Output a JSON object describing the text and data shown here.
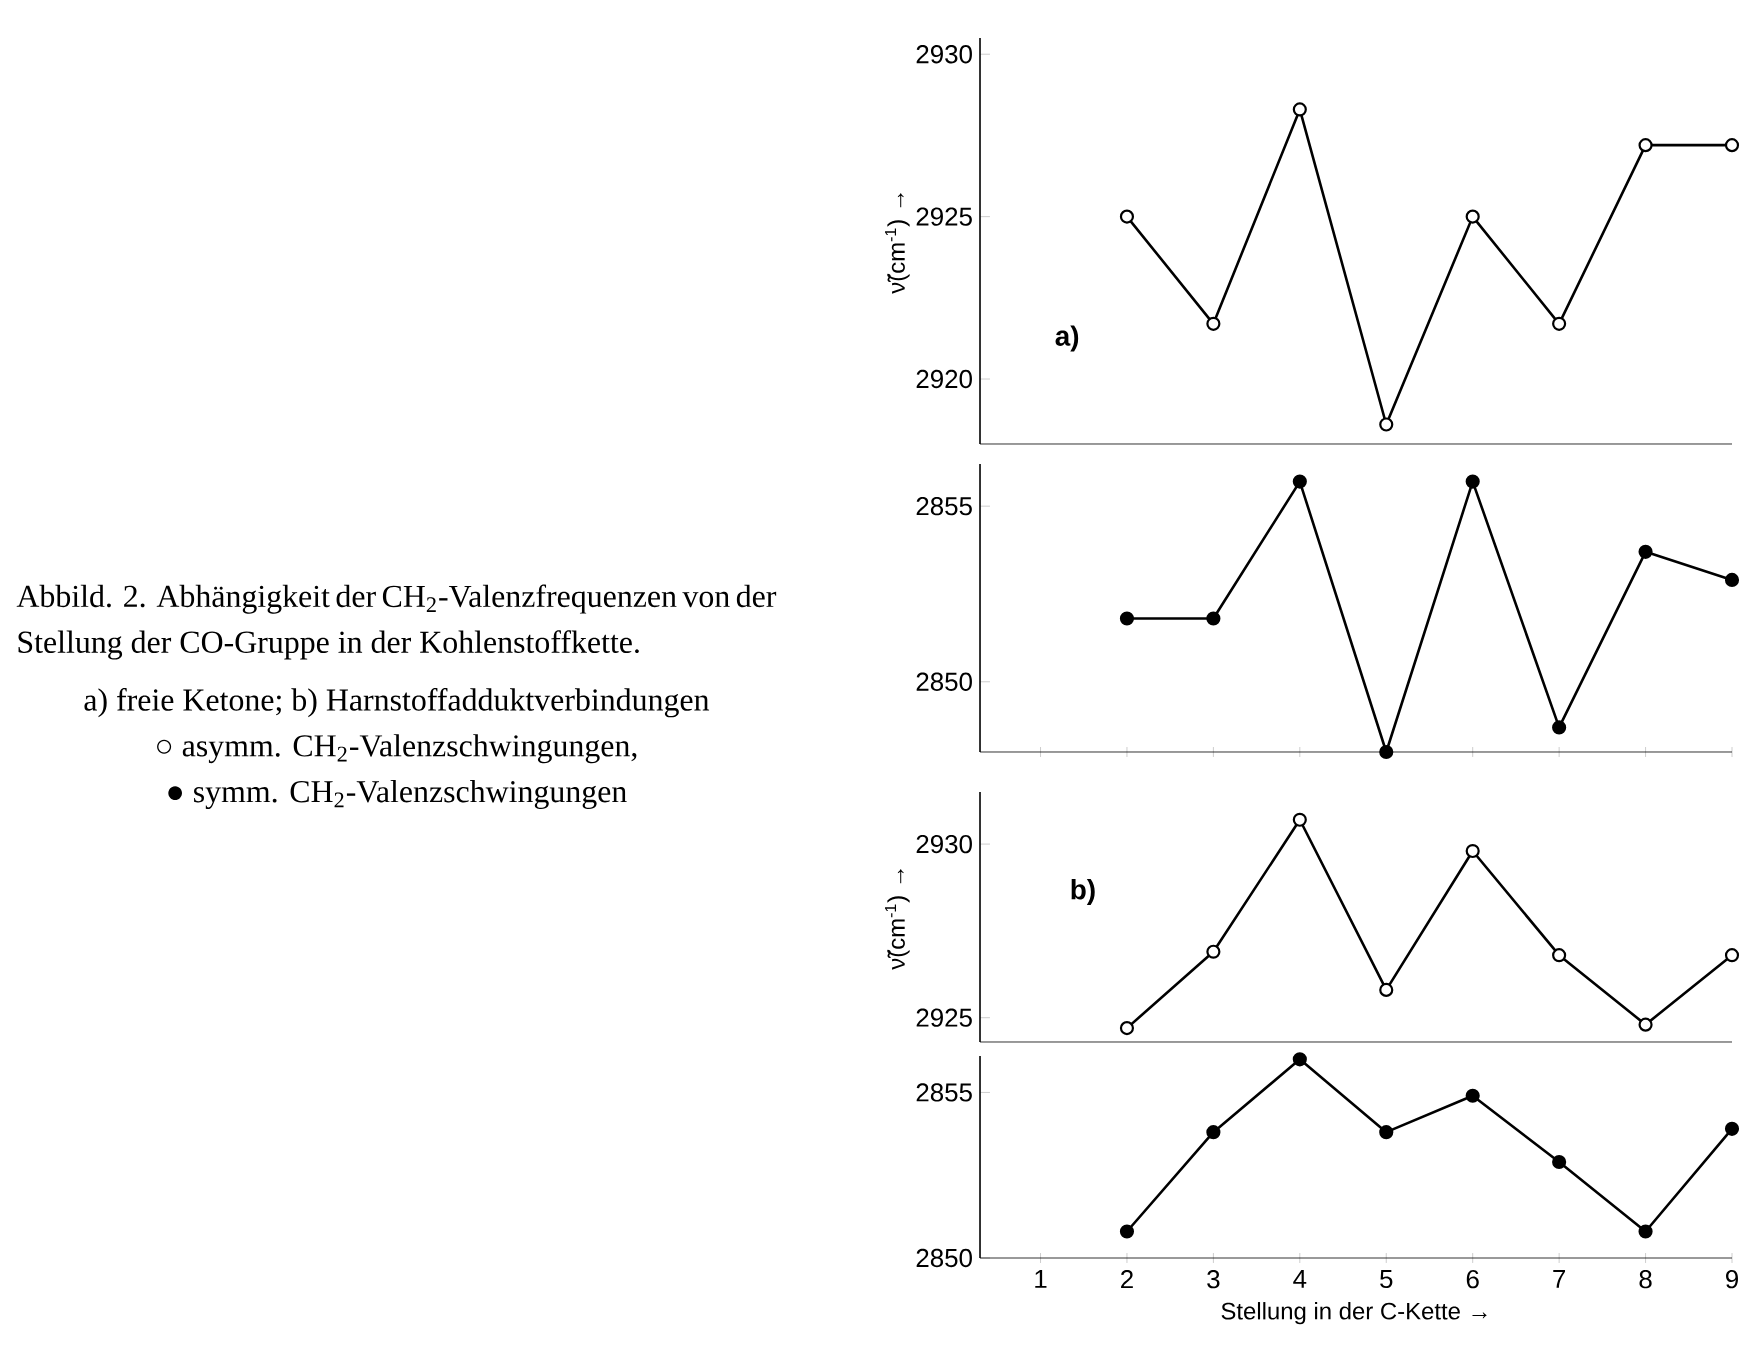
{
  "chart_data": [
    {
      "type": "line",
      "x": [
        2,
        3,
        4,
        5,
        6,
        7,
        8,
        9
      ],
      "marker": "circle",
      "xlim": [
        0.3,
        9
      ],
      "ylim": [
        2918,
        2930.5
      ],
      "yticks": [
        2920,
        2925,
        2930
      ],
      "ylabel": "ν̃(cm$^{-1}$) →",
      "annotations": [
        "a)"
      ],
      "tick_labels": "y",
      "series": [
        {
          "color": "#000000",
          "colors": [
            "#ffffff",
            "#ffffff",
            "#ffffff",
            "#ffffff",
            "#ffffff",
            "#ffffff",
            "#ffffff",
            "#ffffff"
          ],
          "values": [
            2925,
            2921.7,
            2928.3,
            2918.6,
            2925,
            2921.7,
            2927.2,
            2927.2
          ]
        }
      ]
    },
    {
      "type": "line",
      "x": [
        2,
        3,
        4,
        5,
        6,
        7,
        8,
        9
      ],
      "marker": "circle",
      "xlim": [
        0.3,
        9
      ],
      "ylim": [
        2848,
        2856.2
      ],
      "yticks": [
        2850,
        2855
      ],
      "tick_labels": "y",
      "xticks": [
        {
          "value": 1,
          "label": null
        },
        {
          "value": 2,
          "label": null
        },
        {
          "value": 3,
          "label": null
        },
        {
          "value": 4,
          "label": null
        },
        {
          "value": 5,
          "label": null
        },
        {
          "value": 6,
          "label": null
        },
        {
          "value": 7,
          "label": null
        },
        {
          "value": 8,
          "label": null
        },
        {
          "value": 9,
          "label": null
        }
      ],
      "series": [
        {
          "color": "#000000",
          "colors": [
            "#000000",
            "#000000",
            "#000000",
            "#000000",
            "#000000",
            "#000000",
            "#000000",
            "#000000"
          ],
          "values": [
            2851.8,
            2851.8,
            2855.7,
            2848,
            2855.7,
            2848.7,
            2853.7,
            2852.9
          ]
        }
      ]
    },
    {
      "type": "line",
      "x": [
        2,
        3,
        4,
        5,
        6,
        7,
        8,
        9
      ],
      "marker": "circle",
      "xlim": [
        0.3,
        9
      ],
      "ylim": [
        2924.3,
        2931.5
      ],
      "yticks": [
        2925,
        2930
      ],
      "ylabel": "ν̃(cm$^{-1}$) →",
      "annotations": [
        "b)"
      ],
      "tick_labels": "y",
      "series": [
        {
          "color": "#000000",
          "colors": [
            "#ffffff",
            "#ffffff",
            "#ffffff",
            "#ffffff",
            "#ffffff",
            "#ffffff",
            "#ffffff",
            "#ffffff"
          ],
          "values": [
            2924.7,
            2926.9,
            2930.7,
            2925.8,
            2929.8,
            2926.8,
            2924.8,
            2926.8
          ]
        }
      ]
    },
    {
      "type": "line",
      "x": [
        2,
        3,
        4,
        5,
        6,
        7,
        8,
        9
      ],
      "marker": "circle",
      "xlim": [
        0.3,
        9
      ],
      "ylim": [
        2850,
        2856.1
      ],
      "yticks": [
        2850,
        2855
      ],
      "xticks": [
        1,
        2,
        3,
        4,
        5,
        6,
        7,
        8,
        9
      ],
      "xlabel": "Stellung in der C-Kette →",
      "series": [
        {
          "color": "#000000",
          "colors": [
            "#000000",
            "#000000",
            "#000000",
            "#000000",
            "#000000",
            "#000000",
            "#000000",
            "#000000"
          ],
          "values": [
            2850.8,
            2853.8,
            2856,
            2853.8,
            2854.9,
            2852.9,
            2850.8,
            2853.9
          ]
        }
      ]
    },
    {
      "type": "other",
      "annotations": [
        "Abbild. 2. Abhängigkeit der CH$_{2}$-Valenzfrequenzen von der Stellung der CO-Gruppe in der Kohlenstoffkette.",
        "a) freie Ketone; b) Harnstoffadduktverbindungen",
        "○ asymm. CH$_{2}$-Valenzschwingungen,",
        "● symm. CH$_{2}$-Valenzschwingungen"
      ]
    }
  ]
}
